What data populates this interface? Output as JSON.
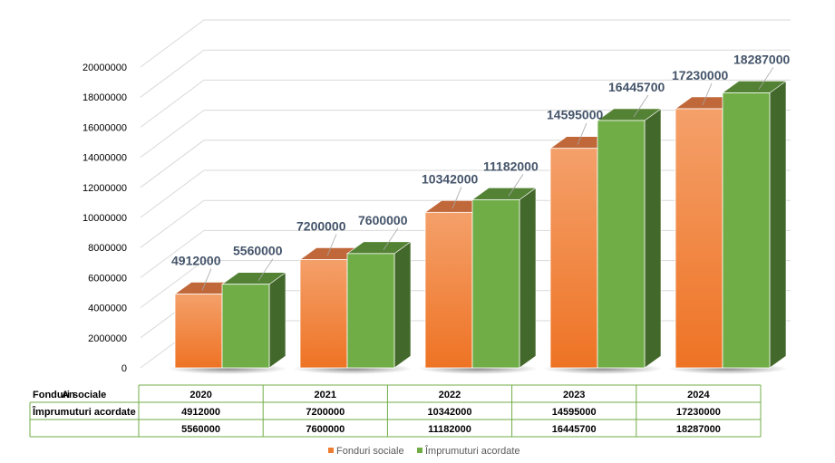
{
  "chart_data": {
    "type": "bar",
    "title": "",
    "categories": [
      "2020",
      "2021",
      "2022",
      "2023",
      "2024"
    ],
    "series": [
      {
        "name": "Fonduri sociale",
        "values": [
          4912000,
          7200000,
          10342000,
          14595000,
          17230000
        ],
        "color": "#ed7d31"
      },
      {
        "name": "Împrumuturi acordate",
        "values": [
          5560000,
          7600000,
          11182000,
          16445700,
          18287000
        ],
        "color": "#70ad47"
      }
    ],
    "y_ticks": [
      0,
      2000000,
      4000000,
      6000000,
      8000000,
      10000000,
      12000000,
      14000000,
      16000000,
      18000000,
      20000000
    ],
    "ylim": [
      0,
      20000000
    ],
    "grid": true,
    "legend_position": "bottom",
    "data_table": {
      "header_label": "An",
      "rows": [
        {
          "label": "Fonduri sociale",
          "values": [
            "4912000",
            "7200000",
            "10342000",
            "14595000",
            "17230000"
          ]
        },
        {
          "label": "Împrumuturi acordate",
          "values": [
            "5560000",
            "7600000",
            "11182000",
            "16445700",
            "18287000"
          ]
        }
      ]
    },
    "style": "3d-clustered-column"
  }
}
